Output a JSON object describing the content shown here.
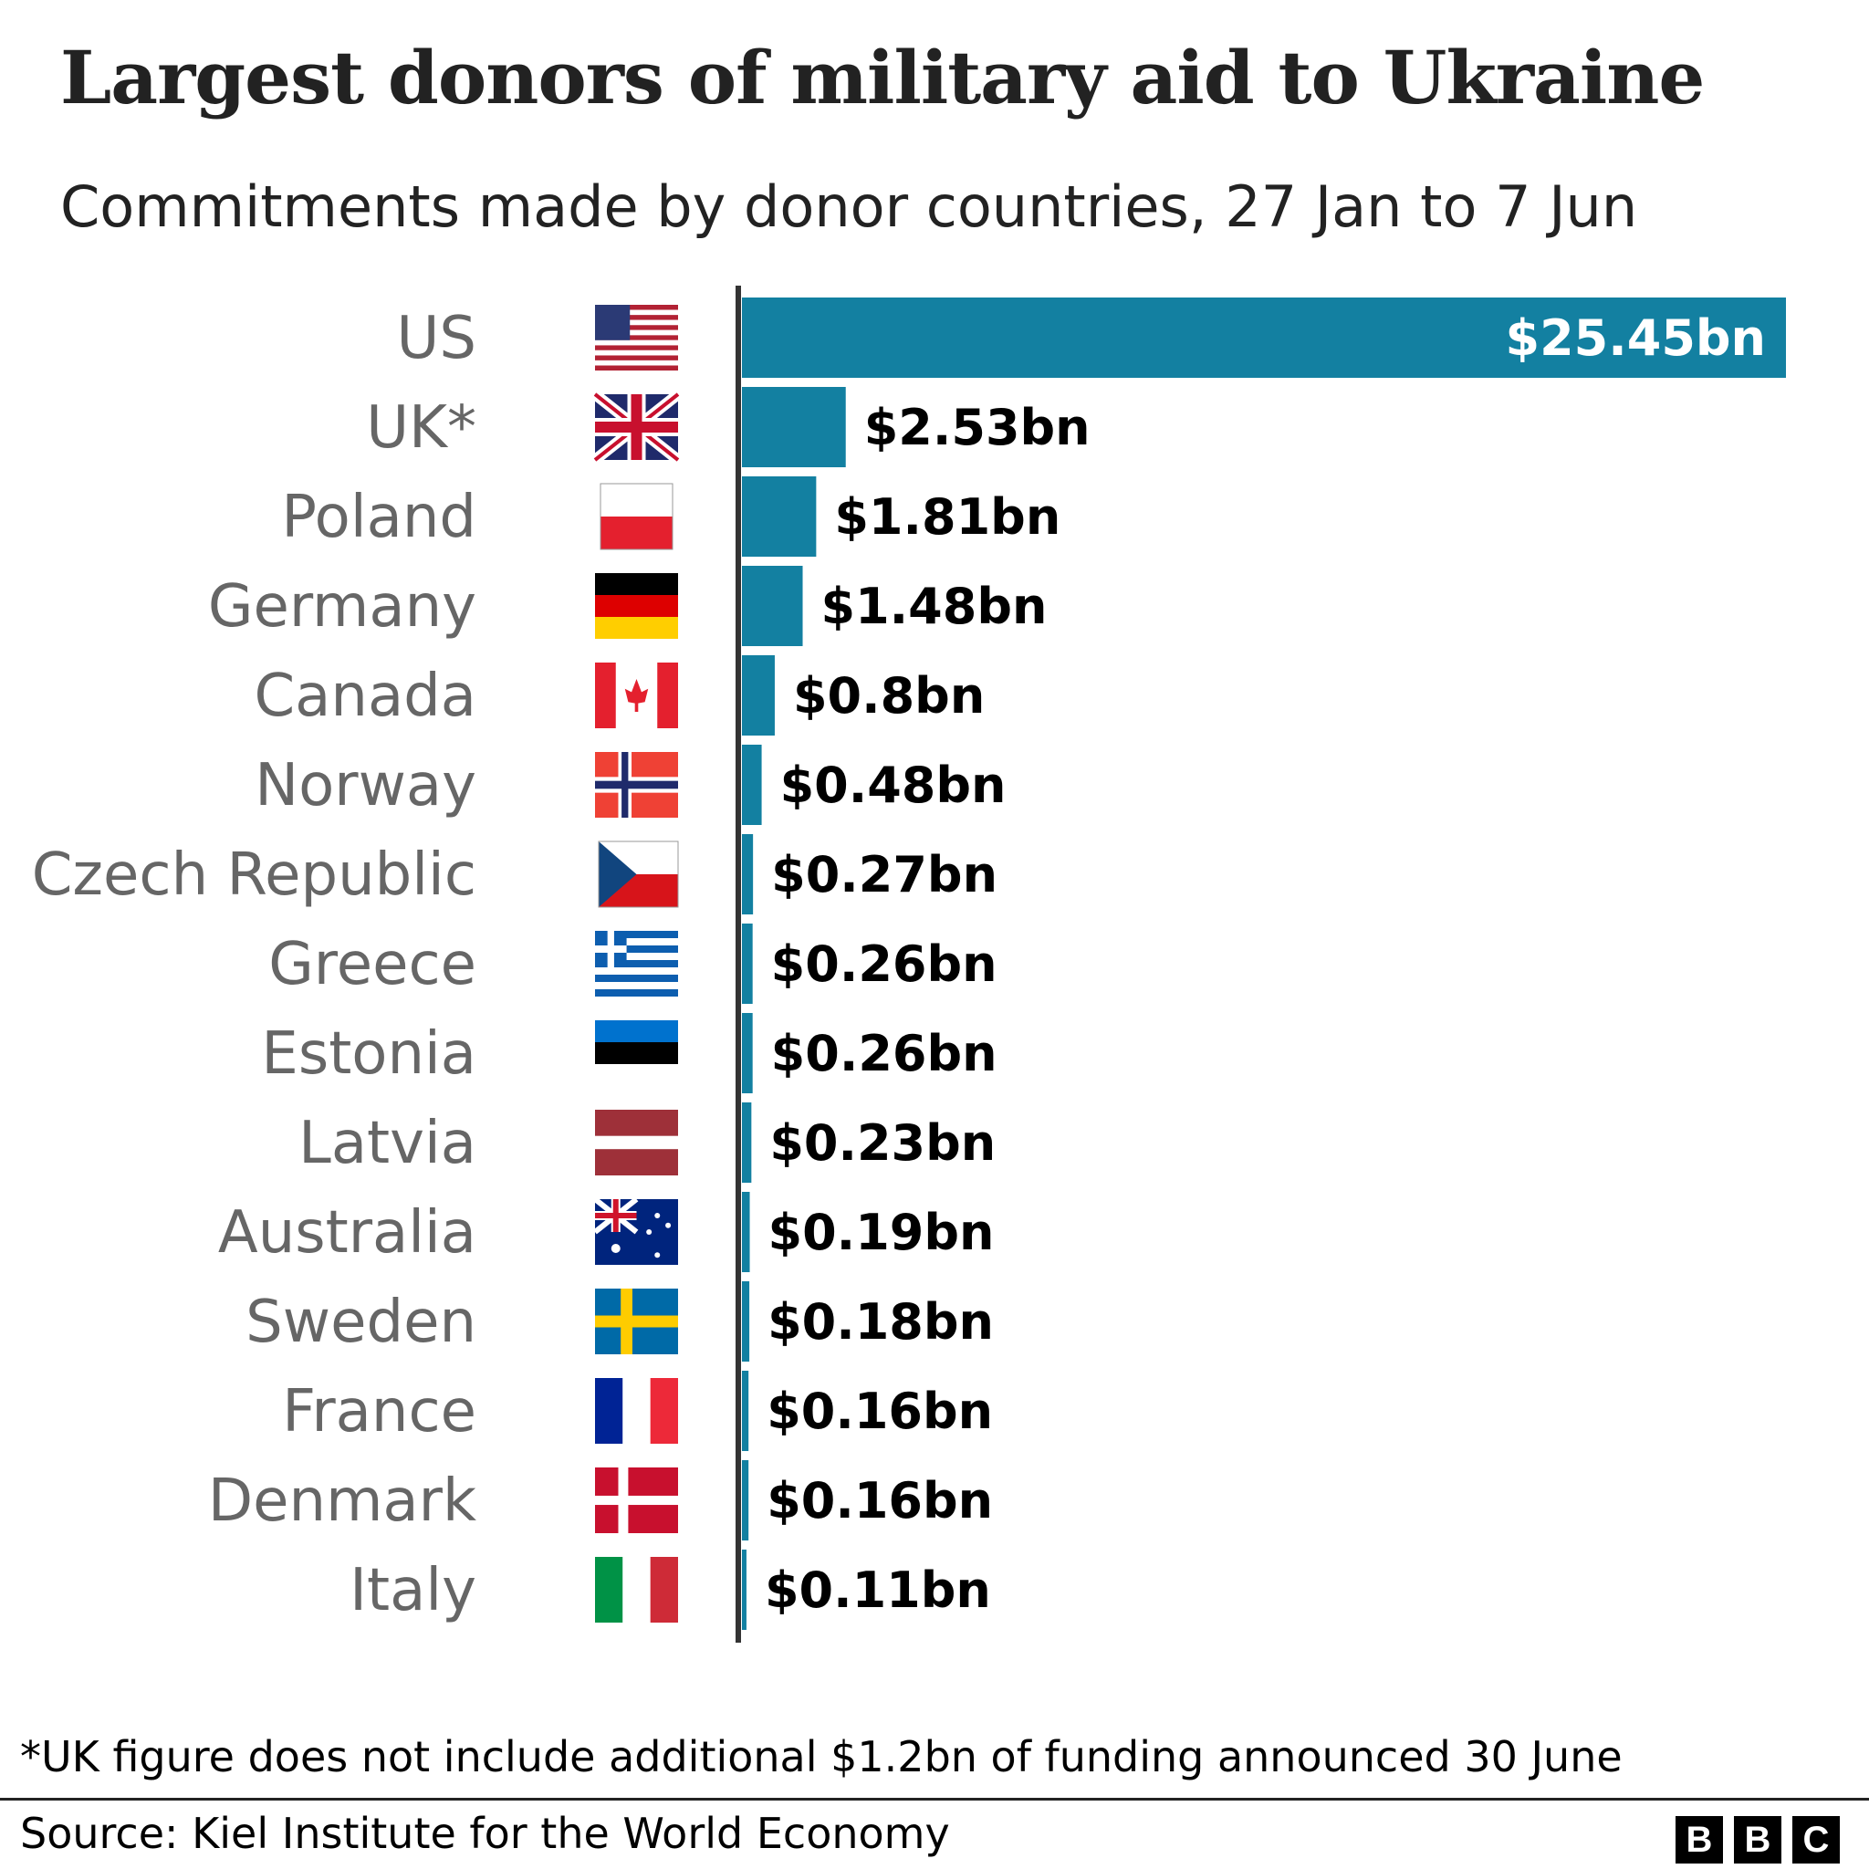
{
  "chart_data": {
    "type": "bar",
    "orientation": "horizontal",
    "title": "Largest donors of military aid to Ukraine",
    "subtitle": "Commitments made by donor countries, 27 Jan to 7 Jun",
    "categories": [
      "US",
      "UK*",
      "Poland",
      "Germany",
      "Canada",
      "Norway",
      "Czech Republic",
      "Greece",
      "Estonia",
      "Latvia",
      "Australia",
      "Sweden",
      "France",
      "Denmark",
      "Italy"
    ],
    "values": [
      25.45,
      2.53,
      1.81,
      1.48,
      0.8,
      0.48,
      0.27,
      0.26,
      0.26,
      0.23,
      0.19,
      0.18,
      0.16,
      0.16,
      0.11
    ],
    "data_labels": [
      "$25.45bn",
      "$2.53bn",
      "$1.81bn",
      "$1.48bn",
      "$0.8bn",
      "$0.48bn",
      "$0.27bn",
      "$0.26bn",
      "$0.26bn",
      "$0.23bn",
      "$0.19bn",
      "$0.18bn",
      "$0.16bn",
      "$0.16bn",
      "$0.11bn"
    ],
    "flag_icons": [
      "us-flag",
      "uk-flag",
      "poland-flag",
      "germany-flag",
      "canada-flag",
      "norway-flag",
      "czech-flag",
      "greece-flag",
      "estonia-flag",
      "latvia-flag",
      "australia-flag",
      "sweden-flag",
      "france-flag",
      "denmark-flag",
      "italy-flag"
    ],
    "bar_color": "#1380A1",
    "xlim": [
      0,
      25.45
    ],
    "grid": false,
    "legend": "none"
  },
  "footnote": "*UK figure does not include additional $1.2bn of funding announced 30 June",
  "source": "Source: Kiel Institute for the World Economy",
  "logo": [
    "B",
    "B",
    "C"
  ]
}
